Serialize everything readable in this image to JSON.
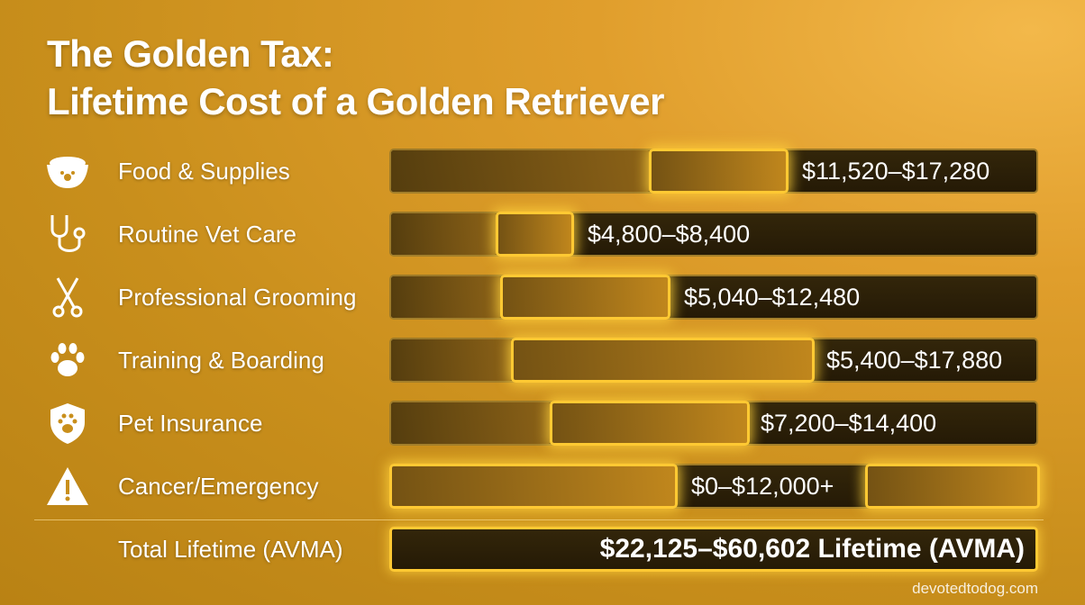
{
  "header": {
    "title_lines": [
      "The Golden Tax:",
      "Lifetime Cost of a Golden Retriever"
    ]
  },
  "rows": [
    {
      "label": "Food & Supplies",
      "value": "$11,520–$17,280"
    },
    {
      "label": "Routine Vet Care",
      "value": "$4,800–$8,400"
    },
    {
      "label": "Professional Grooming",
      "value": "$5,040–$12,480"
    },
    {
      "label": "Training & Boarding",
      "value": "$5,400–$17,880"
    },
    {
      "label": "Pet Insurance",
      "value": "$7,200–$14,400"
    },
    {
      "label": "Cancer/Emergency",
      "value": "$0–$12,000+"
    }
  ],
  "total": {
    "label": "Total Lifetime (AVMA)",
    "value": "$22,125–$60,602 Lifetime (AVMA)"
  },
  "footer": {
    "source": "devotedtodog.com"
  }
}
